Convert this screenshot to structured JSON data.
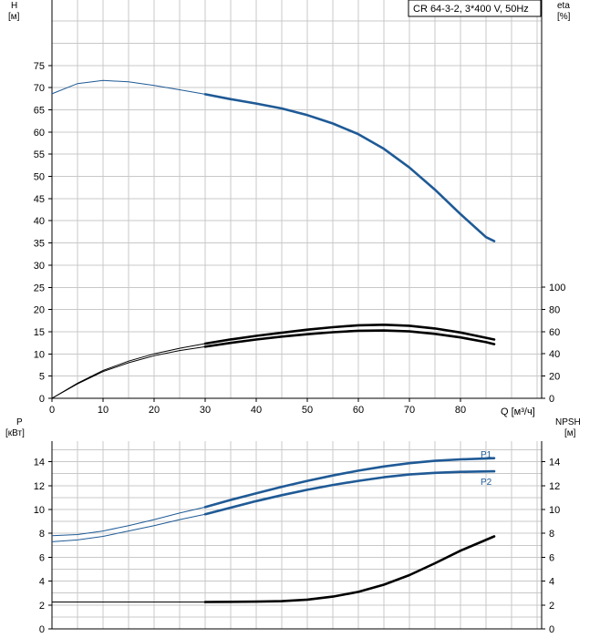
{
  "chart_data": [
    {
      "type": "line",
      "panel": "head_efficiency",
      "title": "CR 64-3-2, 3*400 V, 50Hz",
      "left_axis": {
        "title_line1": "H",
        "title_line2": "[м]",
        "ylim": [
          0,
          75
        ],
        "ticks": [
          0,
          5,
          10,
          15,
          20,
          25,
          30,
          35,
          40,
          45,
          50,
          55,
          60,
          65,
          70,
          75
        ]
      },
      "right_axis": {
        "title_line1": "eta",
        "title_line2": "[%]",
        "ylim": [
          0,
          100
        ],
        "ticks": [
          0,
          20,
          40,
          60,
          80,
          100
        ]
      },
      "x_axis": {
        "label": "Q [м³/ч]",
        "xlim": [
          0,
          90
        ],
        "ticks": [
          0,
          10,
          20,
          30,
          40,
          50,
          60,
          70,
          80
        ]
      },
      "grid": true,
      "series": [
        {
          "axis": "left",
          "color": "#1f5a96",
          "points": [
            [
              0,
              68.6
            ],
            [
              5,
              70.9
            ],
            [
              10,
              71.6
            ],
            [
              15,
              71.3
            ],
            [
              20,
              70.5
            ],
            [
              25,
              69.5
            ],
            [
              30,
              68.5
            ],
            [
              35,
              67.4
            ],
            [
              40,
              66.4
            ],
            [
              45,
              65.3
            ],
            [
              50,
              63.8
            ],
            [
              55,
              61.9
            ],
            [
              60,
              59.5
            ],
            [
              65,
              56.2
            ],
            [
              70,
              52.0
            ],
            [
              75,
              47.0
            ],
            [
              80,
              41.5
            ],
            [
              85,
              36.3
            ],
            [
              86.6,
              35.4
            ]
          ]
        },
        {
          "axis": "right",
          "color": "#000000",
          "points": [
            [
              0,
              0
            ],
            [
              5,
              13.5
            ],
            [
              10,
              25
            ],
            [
              15,
              33.5
            ],
            [
              20,
              40
            ],
            [
              25,
              45
            ],
            [
              30,
              49.2
            ],
            [
              35,
              53
            ],
            [
              40,
              56.2
            ],
            [
              45,
              59
            ],
            [
              50,
              61.8
            ],
            [
              55,
              64
            ],
            [
              60,
              65.7
            ],
            [
              65,
              66.2
            ],
            [
              70,
              65.3
            ],
            [
              75,
              62.8
            ],
            [
              80,
              59.2
            ],
            [
              85,
              54.5
            ],
            [
              86.6,
              52.9
            ]
          ]
        },
        {
          "axis": "right",
          "color": "#000000",
          "points": [
            [
              0,
              0
            ],
            [
              5,
              13
            ],
            [
              10,
              24
            ],
            [
              15,
              32
            ],
            [
              20,
              38.3
            ],
            [
              25,
              43
            ],
            [
              30,
              46.4
            ],
            [
              35,
              49.9
            ],
            [
              40,
              52.9
            ],
            [
              45,
              55.5
            ],
            [
              50,
              57.7
            ],
            [
              55,
              59.5
            ],
            [
              60,
              60.8
            ],
            [
              65,
              61
            ],
            [
              70,
              60.2
            ],
            [
              75,
              58
            ],
            [
              80,
              54.8
            ],
            [
              85,
              50.5
            ],
            [
              86.6,
              48.7
            ]
          ]
        }
      ]
    },
    {
      "type": "line",
      "panel": "power_npsh",
      "left_axis": {
        "title_line1": "P",
        "title_line2": "[кВт]",
        "ylim": [
          0,
          16
        ],
        "ticks": [
          0,
          2,
          4,
          6,
          8,
          10,
          12,
          14
        ]
      },
      "right_axis": {
        "title_line1": "NPSH",
        "title_line2": "[м]",
        "ylim": [
          0,
          16
        ],
        "ticks": [
          0,
          2,
          4,
          6,
          8,
          10,
          12,
          14
        ]
      },
      "xlim": [
        0,
        90
      ],
      "grid": true,
      "series": [
        {
          "name": "P1",
          "axis": "left",
          "color": "#1f5a96",
          "points": [
            [
              0,
              7.8
            ],
            [
              5,
              7.9
            ],
            [
              10,
              8.2
            ],
            [
              15,
              8.65
            ],
            [
              20,
              9.15
            ],
            [
              25,
              9.7
            ],
            [
              30,
              10.2
            ],
            [
              35,
              10.8
            ],
            [
              40,
              11.35
            ],
            [
              45,
              11.9
            ],
            [
              50,
              12.4
            ],
            [
              55,
              12.85
            ],
            [
              60,
              13.25
            ],
            [
              65,
              13.6
            ],
            [
              70,
              13.88
            ],
            [
              75,
              14.08
            ],
            [
              80,
              14.2
            ],
            [
              86.6,
              14.3
            ]
          ]
        },
        {
          "name": "P2",
          "axis": "left",
          "color": "#1f5a96",
          "points": [
            [
              0,
              7.3
            ],
            [
              5,
              7.45
            ],
            [
              10,
              7.75
            ],
            [
              15,
              8.2
            ],
            [
              20,
              8.65
            ],
            [
              25,
              9.15
            ],
            [
              30,
              9.6
            ],
            [
              35,
              10.15
            ],
            [
              40,
              10.7
            ],
            [
              45,
              11.2
            ],
            [
              50,
              11.65
            ],
            [
              55,
              12.05
            ],
            [
              60,
              12.4
            ],
            [
              65,
              12.7
            ],
            [
              70,
              12.93
            ],
            [
              75,
              13.07
            ],
            [
              80,
              13.15
            ],
            [
              86.6,
              13.2
            ]
          ]
        },
        {
          "axis": "right",
          "color": "#000000",
          "points": [
            [
              0,
              2.25
            ],
            [
              10,
              2.25
            ],
            [
              20,
              2.25
            ],
            [
              30,
              2.25
            ],
            [
              40,
              2.28
            ],
            [
              45,
              2.32
            ],
            [
              50,
              2.45
            ],
            [
              55,
              2.7
            ],
            [
              60,
              3.1
            ],
            [
              65,
              3.7
            ],
            [
              70,
              4.5
            ],
            [
              75,
              5.5
            ],
            [
              80,
              6.55
            ],
            [
              86.6,
              7.75
            ]
          ]
        }
      ]
    }
  ]
}
